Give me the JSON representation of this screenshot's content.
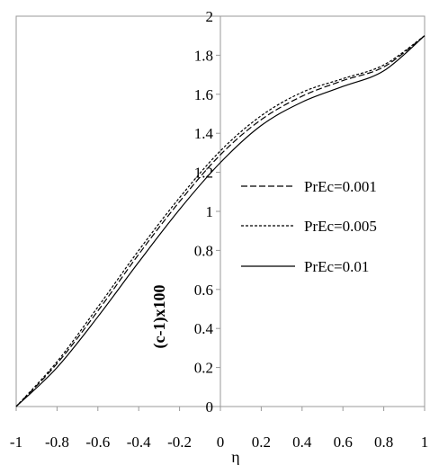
{
  "chart_data": {
    "type": "line",
    "xlabel": "η",
    "ylabel": "(c-1)x100",
    "xlim": [
      -1,
      1
    ],
    "ylim": [
      0,
      2
    ],
    "xticks": [
      "-1",
      "-0.8",
      "-0.6",
      "-0.4",
      "-0.2",
      "0",
      "0.2",
      "0.4",
      "0.6",
      "0.8",
      "1"
    ],
    "yticks": [
      "0",
      "0.2",
      "0.4",
      "0.6",
      "0.8",
      "1",
      "1.2",
      "1.4",
      "1.6",
      "1.8",
      "2"
    ],
    "legend_position": "right",
    "series": [
      {
        "name": "PrEc=0.001",
        "dash": "long-dash",
        "x": [
          -1,
          -0.8,
          -0.6,
          -0.4,
          -0.2,
          0,
          0.2,
          0.4,
          0.6,
          0.8,
          1
        ],
        "y": [
          0,
          0.22,
          0.49,
          0.78,
          1.05,
          1.29,
          1.47,
          1.59,
          1.67,
          1.74,
          1.9
        ]
      },
      {
        "name": "PrEc=0.005",
        "dash": "short-dash",
        "x": [
          -1,
          -0.8,
          -0.6,
          -0.4,
          -0.2,
          0,
          0.2,
          0.4,
          0.6,
          0.8,
          1
        ],
        "y": [
          0,
          0.23,
          0.51,
          0.8,
          1.07,
          1.31,
          1.49,
          1.61,
          1.68,
          1.75,
          1.9
        ]
      },
      {
        "name": "PrEc=0.01",
        "dash": "solid",
        "x": [
          -1,
          -0.8,
          -0.6,
          -0.4,
          -0.2,
          0,
          0.2,
          0.4,
          0.6,
          0.8,
          1
        ],
        "y": [
          0,
          0.2,
          0.46,
          0.74,
          1.01,
          1.25,
          1.44,
          1.56,
          1.64,
          1.72,
          1.9
        ]
      }
    ]
  }
}
